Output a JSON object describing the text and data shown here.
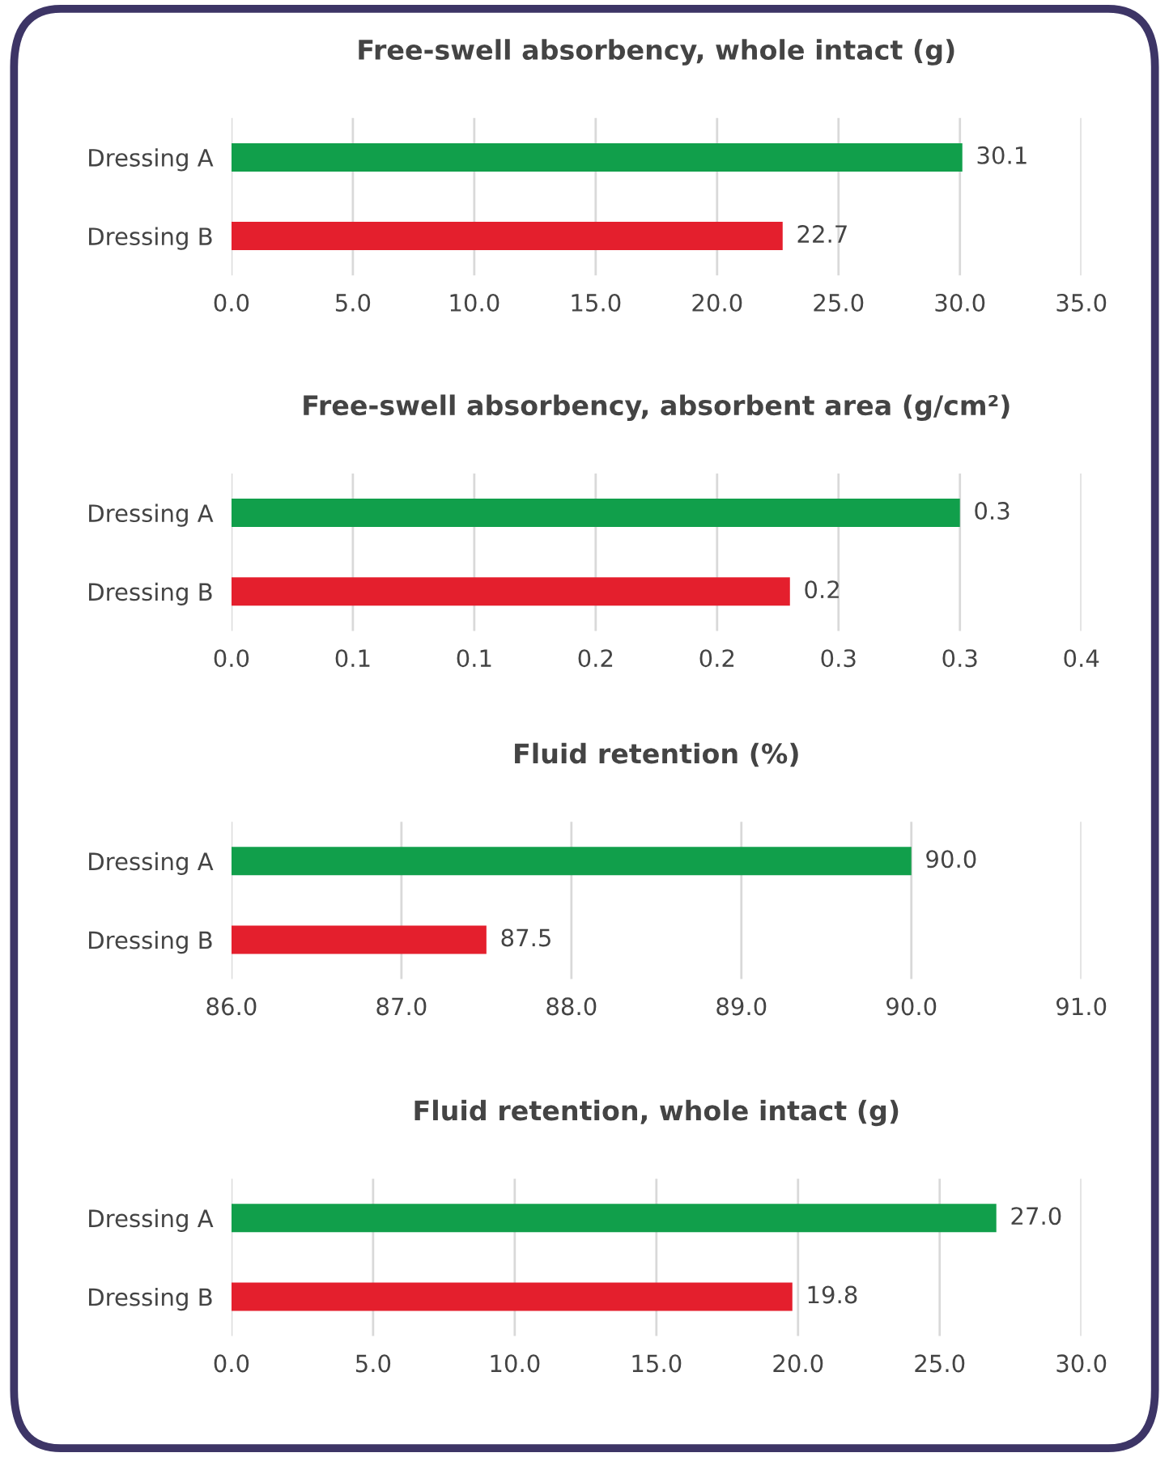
{
  "chart_data": [
    {
      "type": "bar",
      "orientation": "horizontal",
      "title": "Free-swell absorbency, whole intact (g)",
      "categories": [
        "Dressing A",
        "Dressing B"
      ],
      "values": [
        30.1,
        22.7
      ],
      "colors": [
        "#119f4b",
        "#e41f2d"
      ],
      "value_labels": [
        "30.1",
        "22.7"
      ],
      "xlim": [
        0,
        35
      ],
      "xticks": [
        {
          "value": 0,
          "label": "0.0"
        },
        {
          "value": 5,
          "label": "5.0"
        },
        {
          "value": 10,
          "label": "10.0"
        },
        {
          "value": 15,
          "label": "15.0"
        },
        {
          "value": 20,
          "label": "20.0"
        },
        {
          "value": 25,
          "label": "25.0"
        },
        {
          "value": 30,
          "label": "30.0"
        },
        {
          "value": 35,
          "label": "35.0"
        }
      ],
      "grid": "x"
    },
    {
      "type": "bar",
      "orientation": "horizontal",
      "title": "Free-swell absorbency, absorbent area (g/cm²)",
      "categories": [
        "Dressing A",
        "Dressing B"
      ],
      "values": [
        0.3,
        0.23
      ],
      "colors": [
        "#119f4b",
        "#e41f2d"
      ],
      "value_labels": [
        "0.3",
        "0.2"
      ],
      "xlim": [
        0,
        0.35
      ],
      "xticks": [
        {
          "value": 0,
          "label": "0.0"
        },
        {
          "value": 0.05,
          "label": "0.1"
        },
        {
          "value": 0.1,
          "label": "0.1"
        },
        {
          "value": 0.15,
          "label": "0.2"
        },
        {
          "value": 0.2,
          "label": "0.2"
        },
        {
          "value": 0.25,
          "label": "0.3"
        },
        {
          "value": 0.3,
          "label": "0.3"
        },
        {
          "value": 0.35,
          "label": "0.4"
        }
      ],
      "grid": "x"
    },
    {
      "type": "bar",
      "orientation": "horizontal",
      "title": "Fluid retention (%)",
      "categories": [
        "Dressing A",
        "Dressing B"
      ],
      "values": [
        90.0,
        87.5
      ],
      "colors": [
        "#119f4b",
        "#e41f2d"
      ],
      "value_labels": [
        "90.0",
        "87.5"
      ],
      "xlim": [
        86,
        91
      ],
      "xticks": [
        {
          "value": 86,
          "label": "86.0"
        },
        {
          "value": 87,
          "label": "87.0"
        },
        {
          "value": 88,
          "label": "88.0"
        },
        {
          "value": 89,
          "label": "89.0"
        },
        {
          "value": 90,
          "label": "90.0"
        },
        {
          "value": 91,
          "label": "91.0"
        }
      ],
      "grid": "x"
    },
    {
      "type": "bar",
      "orientation": "horizontal",
      "title": "Fluid retention, whole intact (g)",
      "categories": [
        "Dressing A",
        "Dressing B"
      ],
      "values": [
        27.0,
        19.8
      ],
      "colors": [
        "#119f4b",
        "#e41f2d"
      ],
      "value_labels": [
        "27.0",
        "19.8"
      ],
      "xlim": [
        0,
        30
      ],
      "xticks": [
        {
          "value": 0,
          "label": "0.0"
        },
        {
          "value": 5,
          "label": "5.0"
        },
        {
          "value": 10,
          "label": "10.0"
        },
        {
          "value": 15,
          "label": "15.0"
        },
        {
          "value": 20,
          "label": "20.0"
        },
        {
          "value": 25,
          "label": "25.0"
        },
        {
          "value": 30,
          "label": "30.0"
        }
      ],
      "grid": "x"
    }
  ]
}
